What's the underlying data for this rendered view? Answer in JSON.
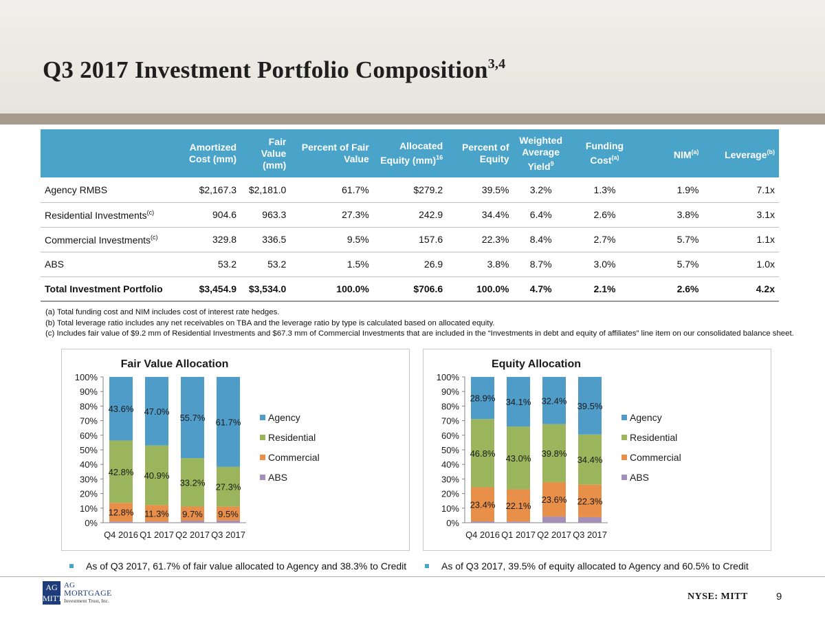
{
  "header": {
    "title": "Q3 2017 Investment Portfolio Composition",
    "title_sup": "3,4"
  },
  "table": {
    "columns": [
      {
        "label": "",
        "sup": ""
      },
      {
        "label": "Amortized Cost (mm)",
        "sup": ""
      },
      {
        "label": "Fair Value (mm)",
        "sup": ""
      },
      {
        "label": "Percent of Fair Value",
        "sup": ""
      },
      {
        "label": "Allocated Equity (mm)",
        "sup": "16"
      },
      {
        "label": "Percent of Equity",
        "sup": ""
      },
      {
        "label": "Weighted Average Yield",
        "sup": "9"
      },
      {
        "label": "Funding Cost",
        "sup": "(a)"
      },
      {
        "label": "NIM",
        "sup": "(a)"
      },
      {
        "label": "Leverage",
        "sup": "(b)"
      }
    ],
    "rows": [
      {
        "name": "Agency RMBS",
        "sup": "",
        "cells": [
          "$2,167.3",
          "$2,181.0",
          "61.7%",
          "$279.2",
          "39.5%",
          "3.2%",
          "1.3%",
          "1.9%",
          "7.1x"
        ]
      },
      {
        "name": "Residential Investments",
        "sup": "(c)",
        "cells": [
          "904.6",
          "963.3",
          "27.3%",
          "242.9",
          "34.4%",
          "6.4%",
          "2.6%",
          "3.8%",
          "3.1x"
        ]
      },
      {
        "name": "Commercial Investments",
        "sup": "(c)",
        "cells": [
          "329.8",
          "336.5",
          "9.5%",
          "157.6",
          "22.3%",
          "8.4%",
          "2.7%",
          "5.7%",
          "1.1x"
        ]
      },
      {
        "name": "ABS",
        "sup": "",
        "cells": [
          "53.2",
          "53.2",
          "1.5%",
          "26.9",
          "3.8%",
          "8.7%",
          "3.0%",
          "5.7%",
          "1.0x"
        ]
      },
      {
        "name": "Total Investment Portfolio",
        "sup": "",
        "cells": [
          "$3,454.9",
          "$3,534.0",
          "100.0%",
          "$706.6",
          "100.0%",
          "4.7%",
          "2.1%",
          "2.6%",
          "4.2x"
        ],
        "total": true
      }
    ]
  },
  "footnotes": [
    "(a) Total funding cost and NIM includes cost of interest rate hedges.",
    "(b) Total leverage ratio includes any net receivables on TBA and the leverage ratio by type is calculated based on allocated equity.",
    "(c) Includes fair value of $9.2 mm of Residential Investments and $67.3 mm of Commercial Investments that are included in the “Investments in debt and equity of affiliates” line item on our consolidated balance sheet."
  ],
  "colors": {
    "agency": "#4f9cc9",
    "residential": "#9bb55c",
    "commercial": "#e8904a",
    "abs": "#a48fb8",
    "header_blue": "#4aa3c9"
  },
  "chart_data": [
    {
      "type": "bar",
      "stacked": true,
      "title": "Fair Value Allocation",
      "categories": [
        "Q4 2016",
        "Q1 2017",
        "Q2 2017",
        "Q3 2017"
      ],
      "yticks": [
        "0%",
        "10%",
        "20%",
        "30%",
        "40%",
        "50%",
        "60%",
        "70%",
        "80%",
        "90%",
        "100%"
      ],
      "ylim": [
        0,
        100
      ],
      "legend": [
        "Agency",
        "Residential",
        "Commercial",
        "ABS"
      ],
      "series": [
        {
          "name": "ABS",
          "values": [
            0.8,
            0.8,
            1.4,
            1.5
          ]
        },
        {
          "name": "Commercial",
          "values": [
            12.8,
            11.3,
            9.7,
            9.5
          ]
        },
        {
          "name": "Residential",
          "values": [
            42.8,
            40.9,
            33.2,
            27.3
          ]
        },
        {
          "name": "Agency",
          "values": [
            43.6,
            47.0,
            55.7,
            61.7
          ]
        }
      ],
      "labels": {
        "Commercial": [
          "12.8%",
          "11.3%",
          "9.7%",
          "9.5%"
        ],
        "Residential": [
          "42.8%",
          "40.9%",
          "33.2%",
          "27.3%"
        ],
        "Agency": [
          "43.6%",
          "47.0%",
          "55.7%",
          "61.7%"
        ]
      }
    },
    {
      "type": "bar",
      "stacked": true,
      "title": "Equity Allocation",
      "categories": [
        "Q4 2016",
        "Q1 2017",
        "Q2 2017",
        "Q3 2017"
      ],
      "yticks": [
        "0%",
        "10%",
        "20%",
        "30%",
        "40%",
        "50%",
        "60%",
        "70%",
        "80%",
        "90%",
        "100%"
      ],
      "ylim": [
        0,
        100
      ],
      "legend": [
        "Agency",
        "Residential",
        "Commercial",
        "ABS"
      ],
      "series": [
        {
          "name": "ABS",
          "values": [
            0.9,
            0.8,
            4.2,
            3.8
          ]
        },
        {
          "name": "Commercial",
          "values": [
            23.4,
            22.1,
            23.6,
            22.3
          ]
        },
        {
          "name": "Residential",
          "values": [
            46.8,
            43.0,
            39.8,
            34.4
          ]
        },
        {
          "name": "Agency",
          "values": [
            28.9,
            34.1,
            32.4,
            39.5
          ]
        }
      ],
      "labels": {
        "Commercial": [
          "23.4%",
          "22.1%",
          "23.6%",
          "22.3%"
        ],
        "Residential": [
          "46.8%",
          "43.0%",
          "39.8%",
          "34.4%"
        ],
        "Agency": [
          "28.9%",
          "34.1%",
          "32.4%",
          "39.5%"
        ]
      }
    }
  ],
  "bullets": {
    "fair_value": "As of Q3 2017, 61.7% of fair value allocated to Agency and 38.3% to Credit",
    "equity": "As of Q3 2017, 39.5% of equity allocated to Agency and 60.5% to Credit"
  },
  "footer": {
    "logo_mark_top": "AG",
    "logo_mark_bottom": "MITT",
    "logo_line1": "AG",
    "logo_line2": "MORTGAGE",
    "logo_line3": "Investment Trust, Inc.",
    "ticker": "NYSE: MITT",
    "page_number": "9"
  }
}
